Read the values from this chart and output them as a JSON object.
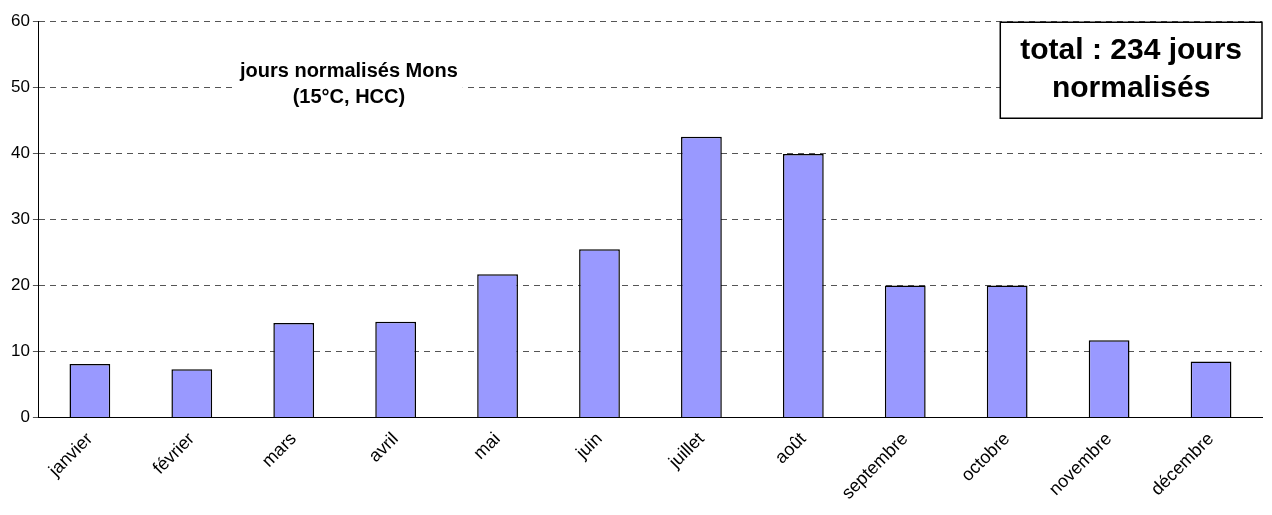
{
  "chart_data": {
    "type": "bar",
    "categories": [
      "janvier",
      "février",
      "mars",
      "avril",
      "mai",
      "juin",
      "juillet",
      "août",
      "septembre",
      "octobre",
      "novembre",
      "décembre"
    ],
    "values": [
      8.1,
      7.3,
      14.3,
      14.5,
      21.7,
      25.5,
      42.5,
      39.9,
      20,
      20,
      11.7,
      8.5
    ],
    "color": "#9999ff",
    "ylim": [
      0,
      60
    ],
    "yticks": [
      0,
      10,
      20,
      30,
      40,
      50,
      60
    ],
    "grid": "y",
    "legend": false,
    "annotations": [
      "jours normalisés Mons\n(15°C, HCC)",
      "total : 234 jours\nnormalisés"
    ]
  }
}
